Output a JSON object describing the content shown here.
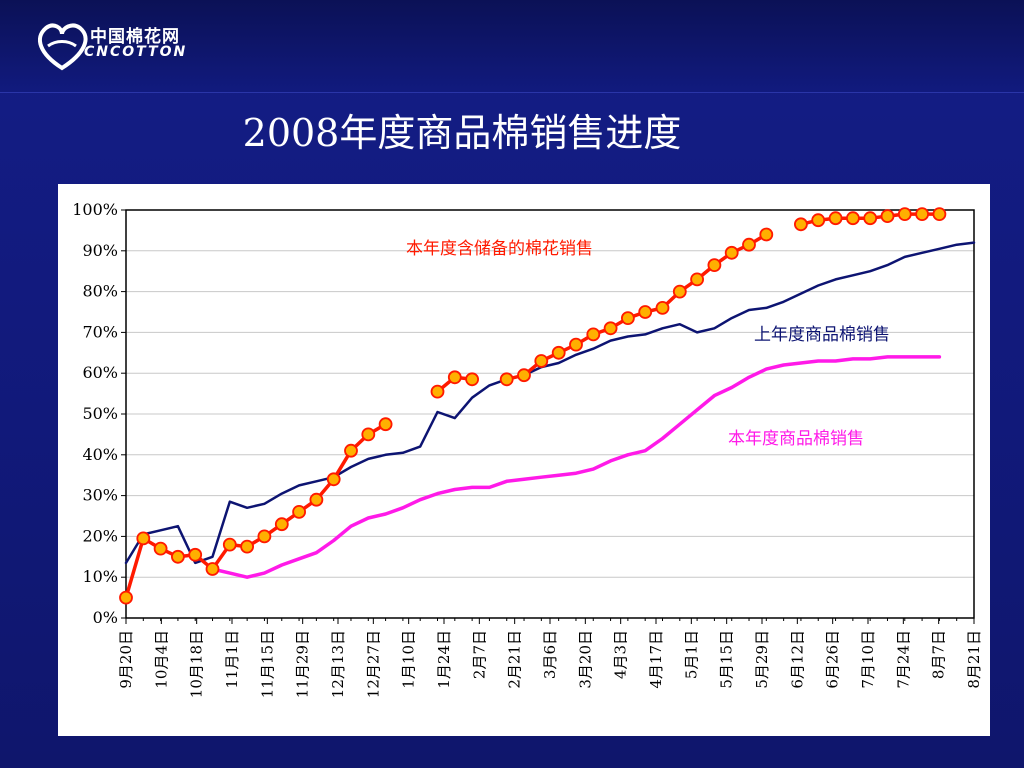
{
  "logo": {
    "cn": "中国棉花网",
    "en": "CNCOTTON"
  },
  "title": "2008年度商品棉销售进度",
  "chart_data": {
    "type": "line",
    "ylim": [
      0,
      100
    ],
    "yticks": [
      "0%",
      "10%",
      "20%",
      "30%",
      "40%",
      "50%",
      "60%",
      "70%",
      "80%",
      "90%",
      "100%"
    ],
    "x_labels": [
      "9月20日",
      "10月4日",
      "10月18日",
      "11月1日",
      "11月15日",
      "11月29日",
      "12月13日",
      "12月27日",
      "1月10日",
      "1月24日",
      "2月7日",
      "2月21日",
      "3月6日",
      "3月20日",
      "4月3日",
      "4月17日",
      "5月1日",
      "5月15日",
      "5月29日",
      "6月12日",
      "6月26日",
      "7月10日",
      "7月24日",
      "8月7日",
      "8月21日"
    ],
    "n_points": 50,
    "series": [
      {
        "name": "本年度含储备的棉花销售",
        "color": "#ff1a00",
        "marker_fill": "#ffb000",
        "values": [
          5,
          19.5,
          17,
          15,
          15.5,
          12,
          18,
          17.5,
          20,
          23,
          26,
          29,
          34,
          41,
          45,
          47.5,
          null,
          null,
          55.5,
          59,
          58.5,
          null,
          58.5,
          59.5,
          63,
          65,
          67,
          69.5,
          71,
          73.5,
          75,
          76,
          80,
          83,
          86.5,
          89.5,
          91.5,
          94,
          null,
          96.5,
          97.5,
          98,
          98,
          98,
          98.5,
          99,
          99,
          99,
          null,
          null
        ]
      },
      {
        "name": "上年度商品棉销售",
        "color": "#0d1472",
        "values": [
          13.5,
          20.5,
          21.5,
          22.5,
          13.5,
          15,
          28.5,
          27,
          28,
          30.5,
          32.5,
          33.5,
          34.5,
          37,
          39,
          40,
          40.5,
          42,
          50.5,
          49,
          54,
          57,
          58.5,
          59.5,
          61.5,
          62.5,
          64.5,
          66,
          68,
          69,
          69.5,
          71,
          72,
          70,
          71,
          73.5,
          75.5,
          76,
          77.5,
          79.5,
          81.5,
          83,
          84,
          85,
          86.5,
          88.5,
          89.5,
          90.5,
          91.5,
          92
        ]
      },
      {
        "name": "本年度商品棉销售",
        "color": "#ff1ae8",
        "values": [
          null,
          null,
          null,
          null,
          null,
          12,
          11,
          10,
          11,
          13,
          14.5,
          16,
          19,
          22.5,
          24.5,
          25.5,
          27,
          29,
          30.5,
          31.5,
          32,
          32,
          33.5,
          34,
          34.5,
          35,
          35.5,
          36.5,
          38.5,
          40,
          41,
          44,
          47.5,
          51,
          54.5,
          56.5,
          59,
          61,
          62,
          62.5,
          63,
          63,
          63.5,
          63.5,
          64,
          64,
          64,
          64,
          null,
          null
        ]
      }
    ],
    "annotations": [
      {
        "text": "本年度含储备的棉花销售",
        "color": "#ff1a00"
      },
      {
        "text": "上年度商品棉销售",
        "color": "#0d1472"
      },
      {
        "text": "本年度商品棉销售",
        "color": "#ff1ae8"
      }
    ],
    "grid": true
  }
}
